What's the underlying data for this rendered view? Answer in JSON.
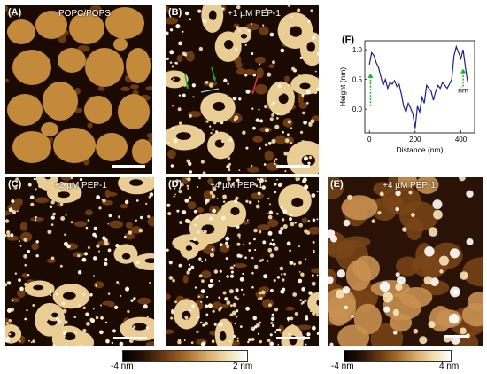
{
  "panels": [
    {
      "id": "A",
      "label": "(A)",
      "title": "POPC/POPS"
    },
    {
      "id": "B",
      "label": "(B)",
      "title": "+1 µM PEP-1"
    },
    {
      "id": "C",
      "label": "(C)",
      "title": "+2 µM PEP-1"
    },
    {
      "id": "D",
      "label": "(D)",
      "title": "+4 µM PEP-1"
    },
    {
      "id": "E",
      "label": "(E)",
      "title": "+4 µM PEP-1"
    }
  ],
  "colorbars": [
    {
      "min_label": "-4 nm",
      "max_label": "2 nm"
    },
    {
      "min_label": "-4 nm",
      "max_label": "4 nm"
    }
  ],
  "colors": {
    "dark": "#1a0a02",
    "mid": "#6b3a12",
    "domain": "#c28a3a",
    "light": "#e9cd94",
    "bright": "#fbf4dc",
    "line": "#1b1f8c",
    "arrow_green": "#1fb02c",
    "arrow_red": "#d43a2a"
  },
  "chart_data": {
    "type": "line",
    "label": "(F)",
    "xlabel": "Distance (nm)",
    "ylabel": "Height (nm)",
    "xlim": [
      -20,
      460
    ],
    "ylim": [
      -0.4,
      1.15
    ],
    "xticks": [
      0,
      200,
      400
    ],
    "yticks": [
      0.0,
      0.5,
      1.0
    ],
    "ytick_labels": [
      "0.0",
      "0.5",
      "1.0"
    ],
    "annotation": "rim",
    "x": [
      0,
      10,
      20,
      30,
      40,
      50,
      60,
      70,
      80,
      90,
      100,
      110,
      120,
      130,
      140,
      150,
      160,
      170,
      180,
      190,
      200,
      210,
      220,
      230,
      240,
      250,
      260,
      270,
      280,
      290,
      300,
      310,
      320,
      330,
      340,
      350,
      360,
      370,
      380,
      390,
      400,
      410,
      420,
      430
    ],
    "y": [
      0.75,
      0.95,
      0.9,
      0.78,
      0.7,
      0.55,
      0.4,
      0.5,
      0.35,
      0.45,
      0.42,
      0.48,
      0.38,
      0.42,
      0.25,
      0.05,
      -0.05,
      0.1,
      0.02,
      -0.08,
      -0.32,
      0.05,
      -0.05,
      0.2,
      0.1,
      0.4,
      0.35,
      0.3,
      0.15,
      0.3,
      0.4,
      0.35,
      0.45,
      0.4,
      0.35,
      0.42,
      0.5,
      0.9,
      1.05,
      0.95,
      0.85,
      1.0,
      0.7,
      0.45
    ]
  }
}
